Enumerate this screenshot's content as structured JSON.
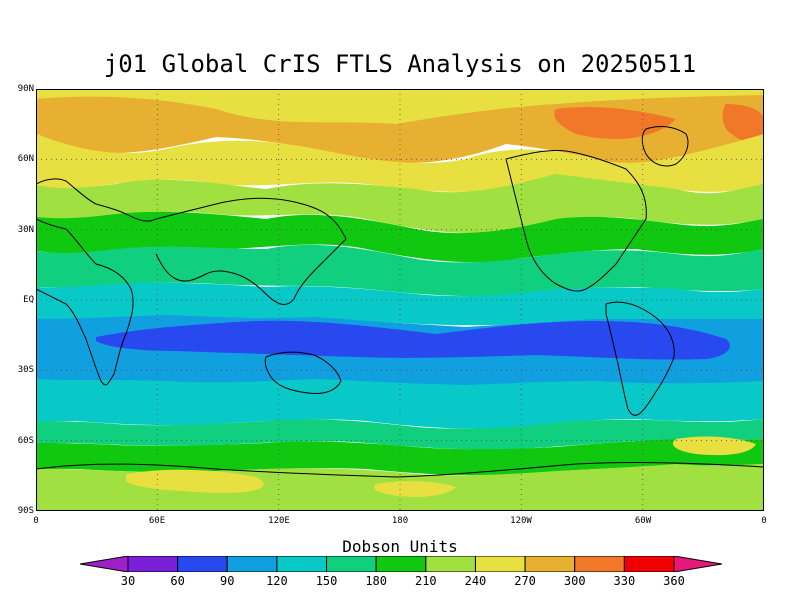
{
  "title": "j01 Global CrIS FTLS Analysis on 20250511",
  "y_axis_labels": [
    "90N",
    "60N",
    "30N",
    "EQ",
    "30S",
    "60S",
    "90S"
  ],
  "x_axis_labels": [
    "0",
    "60E",
    "120E",
    "180",
    "120W",
    "60W",
    "0"
  ],
  "colorbar": {
    "title": "Dobson Units",
    "levels": [
      "30",
      "60",
      "90",
      "120",
      "150",
      "180",
      "210",
      "240",
      "270",
      "300",
      "330",
      "360"
    ],
    "colors": [
      "#a020c8",
      "#7820d8",
      "#2848f0",
      "#10a0e0",
      "#08c8c8",
      "#10d080",
      "#10c810",
      "#a0e040",
      "#e8e040",
      "#e8b030",
      "#f07828",
      "#f00000",
      "#e81878"
    ]
  },
  "map": {
    "projection": "cylindrical equidistant",
    "lon_range": [
      0,
      360
    ],
    "lat_range": [
      -90,
      90
    ],
    "grid": "dotted at 60° lon / 30° lat",
    "ozone_zones": [
      {
        "name": "arctic-max",
        "color": "#e8b030"
      },
      {
        "name": "northern-midlat",
        "color": "#e8e040"
      },
      {
        "name": "northern-subpolar",
        "color": "#a0e040"
      },
      {
        "name": "northern-jet",
        "color": "#10c810"
      },
      {
        "name": "subtropics-north",
        "color": "#10d080"
      },
      {
        "name": "tropics-edge",
        "color": "#08c8c8"
      },
      {
        "name": "tropics",
        "color": "#10a0e0"
      },
      {
        "name": "equatorial-min",
        "color": "#2848f0"
      },
      {
        "name": "southern-subtropics",
        "color": "#08c8c8"
      },
      {
        "name": "southern-midlat",
        "color": "#10d080"
      },
      {
        "name": "southern-jet",
        "color": "#10c810"
      },
      {
        "name": "antarctic",
        "color": "#a0e040"
      }
    ]
  }
}
